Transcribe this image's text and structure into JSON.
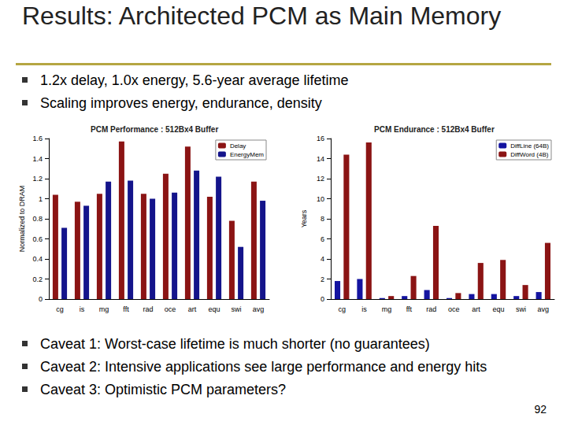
{
  "slide": {
    "title": "Results: Architected PCM as Main Memory",
    "bullets": [
      "1.2x delay, 1.0x energy, 5.6-year average lifetime",
      "Scaling improves energy, endurance, density"
    ],
    "caveats": [
      "Caveat 1: Worst-case lifetime is much shorter (no guarantees)",
      "Caveat 2: Intensive applications see large performance and energy hits",
      "Caveat 3: Optimistic PCM parameters?"
    ],
    "page_number": "92"
  },
  "chart_data": [
    {
      "type": "bar",
      "title": "PCM Performance : 512Bx4 Buffer",
      "y_label": "Normalized to DRAM",
      "categories": [
        "cg",
        "is",
        "mg",
        "fft",
        "rad",
        "oce",
        "art",
        "equ",
        "swi",
        "avg"
      ],
      "series": [
        {
          "name": "Delay",
          "color": "#8b1414",
          "values": [
            1.04,
            0.97,
            1.05,
            1.57,
            1.05,
            1.25,
            1.52,
            1.02,
            0.78,
            1.17
          ]
        },
        {
          "name": "EnergyMem",
          "color": "#14148b",
          "values": [
            0.71,
            0.93,
            1.17,
            1.18,
            1.0,
            1.06,
            1.28,
            1.22,
            0.52,
            0.98
          ]
        }
      ],
      "ylim": [
        0,
        1.6
      ],
      "yticks": [
        0,
        0.2,
        0.4,
        0.6,
        0.8,
        1,
        1.2,
        1.4,
        1.6
      ],
      "grid": false,
      "legend": "upper right"
    },
    {
      "type": "bar",
      "title": "PCM Endurance : 512Bx4 Buffer",
      "y_label": "Years",
      "categories": [
        "cg",
        "is",
        "mg",
        "fft",
        "rad",
        "oce",
        "art",
        "equ",
        "swi",
        "avg"
      ],
      "series": [
        {
          "name": "DiffLine (64B)",
          "color": "#1414a0",
          "values": [
            1.8,
            2.0,
            0.1,
            0.3,
            0.9,
            0.1,
            0.5,
            0.5,
            0.3,
            0.7
          ]
        },
        {
          "name": "DiffWord (4B)",
          "color": "#8b1414",
          "values": [
            14.4,
            15.6,
            0.3,
            2.3,
            7.3,
            0.6,
            3.6,
            3.9,
            1.4,
            5.6
          ]
        }
      ],
      "ylim": [
        0,
        16
      ],
      "yticks": [
        0,
        2,
        4,
        6,
        8,
        10,
        12,
        14,
        16
      ],
      "grid": false,
      "legend": "upper right"
    }
  ]
}
